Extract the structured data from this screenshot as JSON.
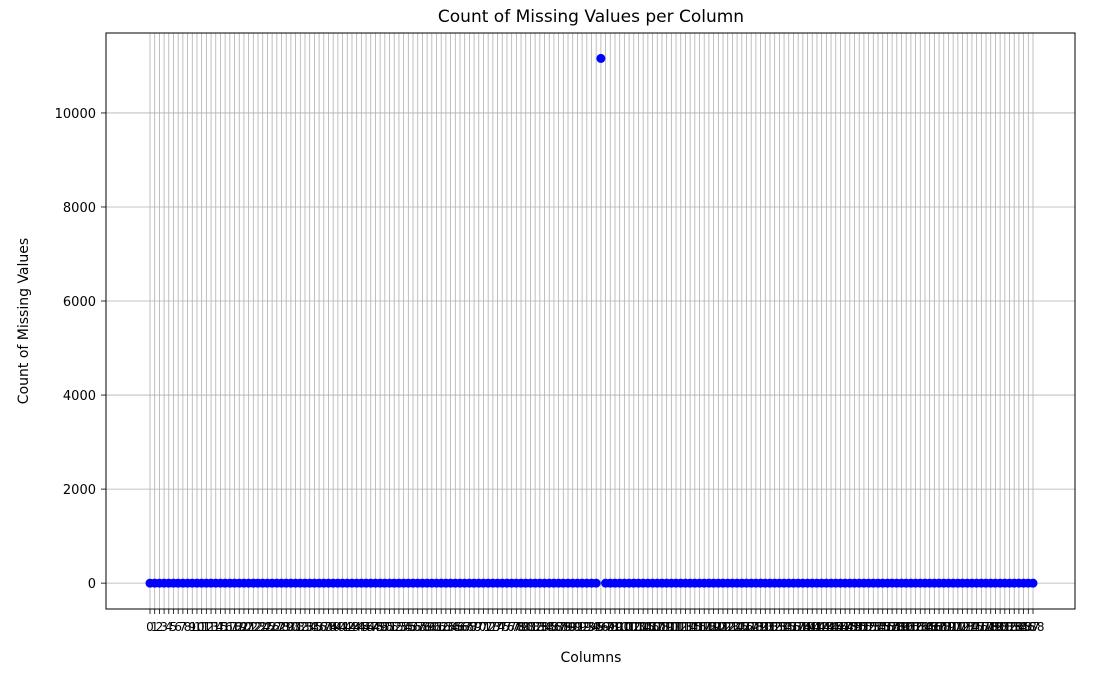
{
  "chart_data": {
    "type": "scatter",
    "title": "Count of Missing Values per Column",
    "xlabel": "Columns",
    "ylabel": "Count of Missing Values",
    "category_count": 189,
    "y": {
      "lim": [
        -550,
        11700
      ],
      "ticks": [
        0,
        2000,
        4000,
        6000,
        8000,
        10000
      ]
    },
    "grid": true,
    "marker_color": "#0000ff",
    "grid_color": "#b0b0b0",
    "series": [
      {
        "values": [
          0,
          0,
          0,
          0,
          0,
          0,
          0,
          0,
          0,
          0,
          0,
          0,
          0,
          0,
          0,
          0,
          0,
          0,
          0,
          0,
          0,
          0,
          0,
          0,
          0,
          0,
          0,
          0,
          0,
          0,
          0,
          0,
          0,
          0,
          0,
          0,
          0,
          0,
          0,
          0,
          0,
          0,
          0,
          0,
          0,
          0,
          0,
          0,
          0,
          0,
          0,
          0,
          0,
          0,
          0,
          0,
          0,
          0,
          0,
          0,
          0,
          0,
          0,
          0,
          0,
          0,
          0,
          0,
          0,
          0,
          0,
          0,
          0,
          0,
          0,
          0,
          0,
          0,
          0,
          0,
          0,
          0,
          0,
          0,
          0,
          0,
          0,
          0,
          0,
          0,
          0,
          0,
          0,
          0,
          0,
          0,
          11160,
          0,
          0,
          0,
          0,
          0,
          0,
          0,
          0,
          0,
          0,
          0,
          0,
          0,
          0,
          0,
          0,
          0,
          0,
          0,
          0,
          0,
          0,
          0,
          0,
          0,
          0,
          0,
          0,
          0,
          0,
          0,
          0,
          0,
          0,
          0,
          0,
          0,
          0,
          0,
          0,
          0,
          0,
          0,
          0,
          0,
          0,
          0,
          0,
          0,
          0,
          0,
          0,
          0,
          0,
          0,
          0,
          0,
          0,
          0,
          0,
          0,
          0,
          0,
          0,
          0,
          0,
          0,
          0,
          0,
          0,
          0,
          0,
          0,
          0,
          0,
          0,
          0,
          0,
          0,
          0,
          0,
          0,
          0,
          0,
          0,
          0,
          0,
          0,
          0,
          0,
          0,
          0
        ]
      }
    ]
  }
}
